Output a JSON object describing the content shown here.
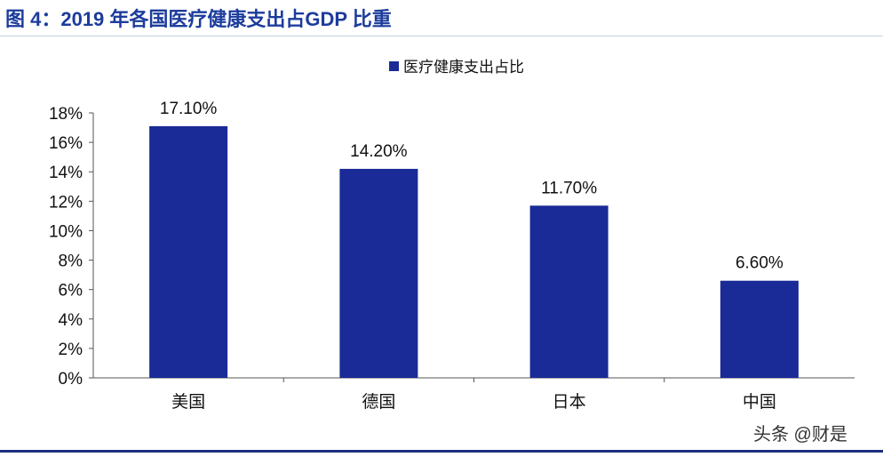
{
  "title": "图 4：2019 年各国医疗健康支出占GDP 比重",
  "watermark": "头条 @财是",
  "chart_data": {
    "type": "bar",
    "title": "图 4：2019 年各国医疗健康支出占GDP 比重",
    "categories": [
      "美国",
      "德国",
      "日本",
      "中国"
    ],
    "series": [
      {
        "name": "医疗健康支出占比",
        "values": [
          17.1,
          14.2,
          11.7,
          6.6
        ],
        "color": "#1a2a96"
      }
    ],
    "data_labels": [
      "17.10%",
      "14.20%",
      "11.70%",
      "6.60%"
    ],
    "yticks": [
      "0%",
      "2%",
      "4%",
      "6%",
      "8%",
      "10%",
      "12%",
      "14%",
      "16%",
      "18%"
    ],
    "ylim": [
      0,
      18
    ],
    "xlabel": "",
    "ylabel": "",
    "legend": "top-center",
    "grid": false
  }
}
